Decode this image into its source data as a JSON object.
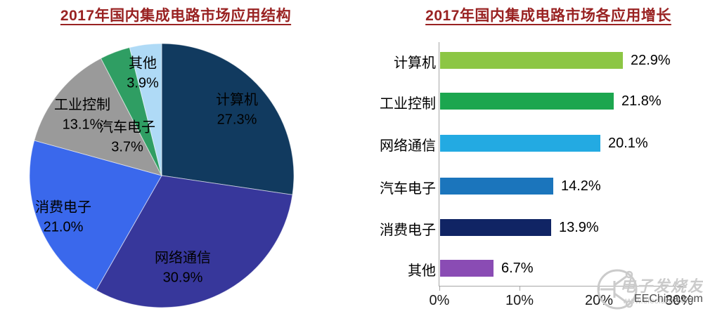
{
  "chart_data": [
    {
      "type": "pie",
      "title": "2017年国内集成电路市场应用结构",
      "direction": "clockwise",
      "start_angle_deg": 0,
      "label_color": "#000000",
      "slices": [
        {
          "label": "计算机",
          "value": 27.3,
          "display": "27.3%",
          "color": "#113A5F"
        },
        {
          "label": "网络通信",
          "value": 30.9,
          "display": "30.9%",
          "color": "#37379B"
        },
        {
          "label": "消费电子",
          "value": 21.0,
          "display": "21.0%",
          "color": "#3A68EC"
        },
        {
          "label": "工业控制",
          "value": 13.1,
          "display": "13.1%",
          "color": "#9A9A9A"
        },
        {
          "label": "汽车电子",
          "value": 3.7,
          "display": "3.7%",
          "color": "#2F9E63"
        },
        {
          "label": "其他",
          "value": 3.9,
          "display": "3.9%",
          "color": "#AFDAF6"
        }
      ]
    },
    {
      "type": "bar",
      "title": "2017年国内集成电路市场各应用增长",
      "orientation": "horizontal",
      "categories": [
        "计算机",
        "工业控制",
        "网络通信",
        "汽车电子",
        "消费电子",
        "其他"
      ],
      "values": [
        22.9,
        21.8,
        20.1,
        14.2,
        13.9,
        6.7
      ],
      "value_labels": [
        "22.9%",
        "21.8%",
        "20.1%",
        "14.2%",
        "13.9%",
        "6.7%"
      ],
      "bar_colors": [
        "#8CC644",
        "#1CA64F",
        "#23AAE2",
        "#1B75BC",
        "#102464",
        "#8A4CB4"
      ],
      "xlim": [
        0,
        30
      ],
      "x_ticks": [
        {
          "value": 0,
          "label": "0%"
        },
        {
          "value": 10,
          "label": "10%"
        },
        {
          "value": 20,
          "label": "20%"
        },
        {
          "value": 30,
          "label": "30%"
        }
      ],
      "grid": false,
      "legend": "none"
    }
  ],
  "theme": {
    "background": "#FFFFFF",
    "title_color": "#992222",
    "axis_color": "#A6A6A6",
    "text_color": "#000000"
  },
  "watermark": {
    "site_name": "电子发烧友",
    "site_url": "www.elecfans.com",
    "overlay_text": "EEChina.com",
    "logo_icon": "transistor-circle-logo"
  }
}
